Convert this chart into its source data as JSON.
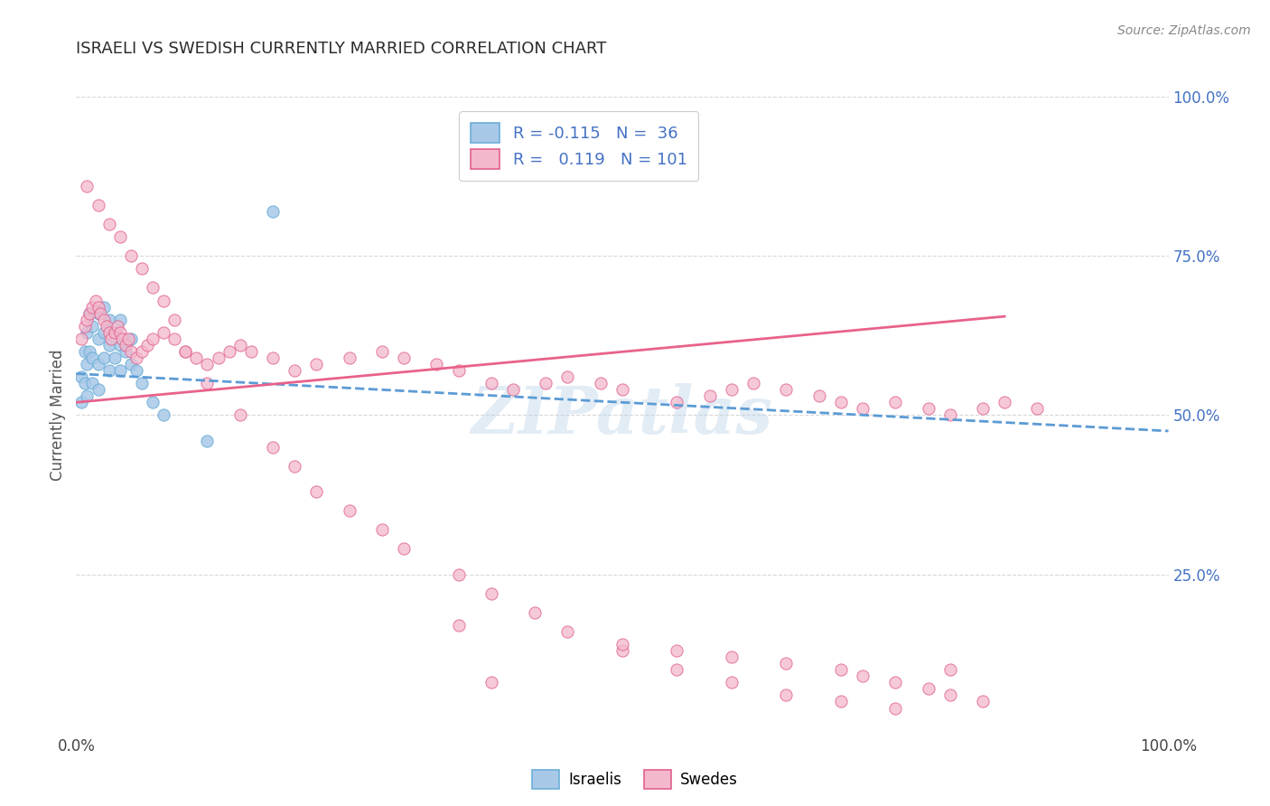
{
  "title": "ISRAELI VS SWEDISH CURRENTLY MARRIED CORRELATION CHART",
  "source": "Source: ZipAtlas.com",
  "ylabel": "Currently Married",
  "right_yticks": [
    "100.0%",
    "75.0%",
    "50.0%",
    "25.0%"
  ],
  "right_ytick_vals": [
    1.0,
    0.75,
    0.5,
    0.25
  ],
  "xlim": [
    0.0,
    1.0
  ],
  "ylim": [
    0.0,
    1.0
  ],
  "background_color": "#ffffff",
  "grid_color": "#d8d8d8",
  "watermark": "ZIPatlas",
  "title_color": "#2c2c2c",
  "title_fontsize": 13,
  "israeli_color": "#a8c8e8",
  "israeli_edge": "#6baed6",
  "swedish_color": "#f4b8cc",
  "swedish_edge": "#e06090",
  "israeli_trend_color": "#5b9bd5",
  "swedish_trend_color": "#e8628a",
  "legend_blue_color": "#4472c4",
  "bottom_label_israelis": "Israelis",
  "bottom_label_swedes": "Swedes",
  "israeli_trend_x0": 0.0,
  "israeli_trend_y0": 0.565,
  "israeli_trend_x1": 1.0,
  "israeli_trend_y1": 0.475,
  "swedish_trend_x0": 0.0,
  "swedish_trend_x1": 0.85,
  "swedish_trend_y0": 0.52,
  "swedish_trend_y1": 0.655,
  "israeli_x": [
    0.005,
    0.005,
    0.008,
    0.008,
    0.01,
    0.01,
    0.01,
    0.012,
    0.012,
    0.015,
    0.015,
    0.015,
    0.02,
    0.02,
    0.02,
    0.02,
    0.025,
    0.025,
    0.025,
    0.03,
    0.03,
    0.03,
    0.035,
    0.035,
    0.04,
    0.04,
    0.04,
    0.045,
    0.05,
    0.05,
    0.055,
    0.06,
    0.07,
    0.08,
    0.12,
    0.18
  ],
  "israeli_y": [
    0.56,
    0.52,
    0.6,
    0.55,
    0.63,
    0.58,
    0.53,
    0.66,
    0.6,
    0.64,
    0.59,
    0.55,
    0.66,
    0.62,
    0.58,
    0.54,
    0.67,
    0.63,
    0.59,
    0.65,
    0.61,
    0.57,
    0.63,
    0.59,
    0.65,
    0.61,
    0.57,
    0.6,
    0.62,
    0.58,
    0.57,
    0.55,
    0.52,
    0.5,
    0.46,
    0.82
  ],
  "swedish_x": [
    0.005,
    0.008,
    0.01,
    0.012,
    0.015,
    0.018,
    0.02,
    0.022,
    0.025,
    0.028,
    0.03,
    0.032,
    0.035,
    0.038,
    0.04,
    0.042,
    0.045,
    0.048,
    0.05,
    0.055,
    0.06,
    0.065,
    0.07,
    0.08,
    0.09,
    0.1,
    0.11,
    0.12,
    0.13,
    0.14,
    0.15,
    0.16,
    0.18,
    0.2,
    0.22,
    0.25,
    0.28,
    0.3,
    0.33,
    0.35,
    0.38,
    0.4,
    0.43,
    0.45,
    0.48,
    0.5,
    0.55,
    0.58,
    0.6,
    0.62,
    0.65,
    0.68,
    0.7,
    0.72,
    0.75,
    0.78,
    0.8,
    0.83,
    0.85,
    0.88,
    0.01,
    0.02,
    0.03,
    0.04,
    0.05,
    0.06,
    0.07,
    0.08,
    0.09,
    0.1,
    0.12,
    0.15,
    0.18,
    0.2,
    0.22,
    0.25,
    0.28,
    0.3,
    0.35,
    0.38,
    0.42,
    0.45,
    0.5,
    0.55,
    0.6,
    0.65,
    0.7,
    0.75,
    0.8,
    0.38,
    0.5,
    0.55,
    0.6,
    0.65,
    0.7,
    0.72,
    0.75,
    0.78,
    0.8,
    0.83,
    0.35
  ],
  "swedish_y": [
    0.62,
    0.64,
    0.65,
    0.66,
    0.67,
    0.68,
    0.67,
    0.66,
    0.65,
    0.64,
    0.63,
    0.62,
    0.63,
    0.64,
    0.63,
    0.62,
    0.61,
    0.62,
    0.6,
    0.59,
    0.6,
    0.61,
    0.62,
    0.63,
    0.62,
    0.6,
    0.59,
    0.58,
    0.59,
    0.6,
    0.61,
    0.6,
    0.59,
    0.57,
    0.58,
    0.59,
    0.6,
    0.59,
    0.58,
    0.57,
    0.55,
    0.54,
    0.55,
    0.56,
    0.55,
    0.54,
    0.52,
    0.53,
    0.54,
    0.55,
    0.54,
    0.53,
    0.52,
    0.51,
    0.52,
    0.51,
    0.5,
    0.51,
    0.52,
    0.51,
    0.86,
    0.83,
    0.8,
    0.78,
    0.75,
    0.73,
    0.7,
    0.68,
    0.65,
    0.6,
    0.55,
    0.5,
    0.45,
    0.42,
    0.38,
    0.35,
    0.32,
    0.29,
    0.25,
    0.22,
    0.19,
    0.16,
    0.13,
    0.1,
    0.08,
    0.06,
    0.05,
    0.04,
    0.1,
    0.08,
    0.14,
    0.13,
    0.12,
    0.11,
    0.1,
    0.09,
    0.08,
    0.07,
    0.06,
    0.05,
    0.17
  ]
}
